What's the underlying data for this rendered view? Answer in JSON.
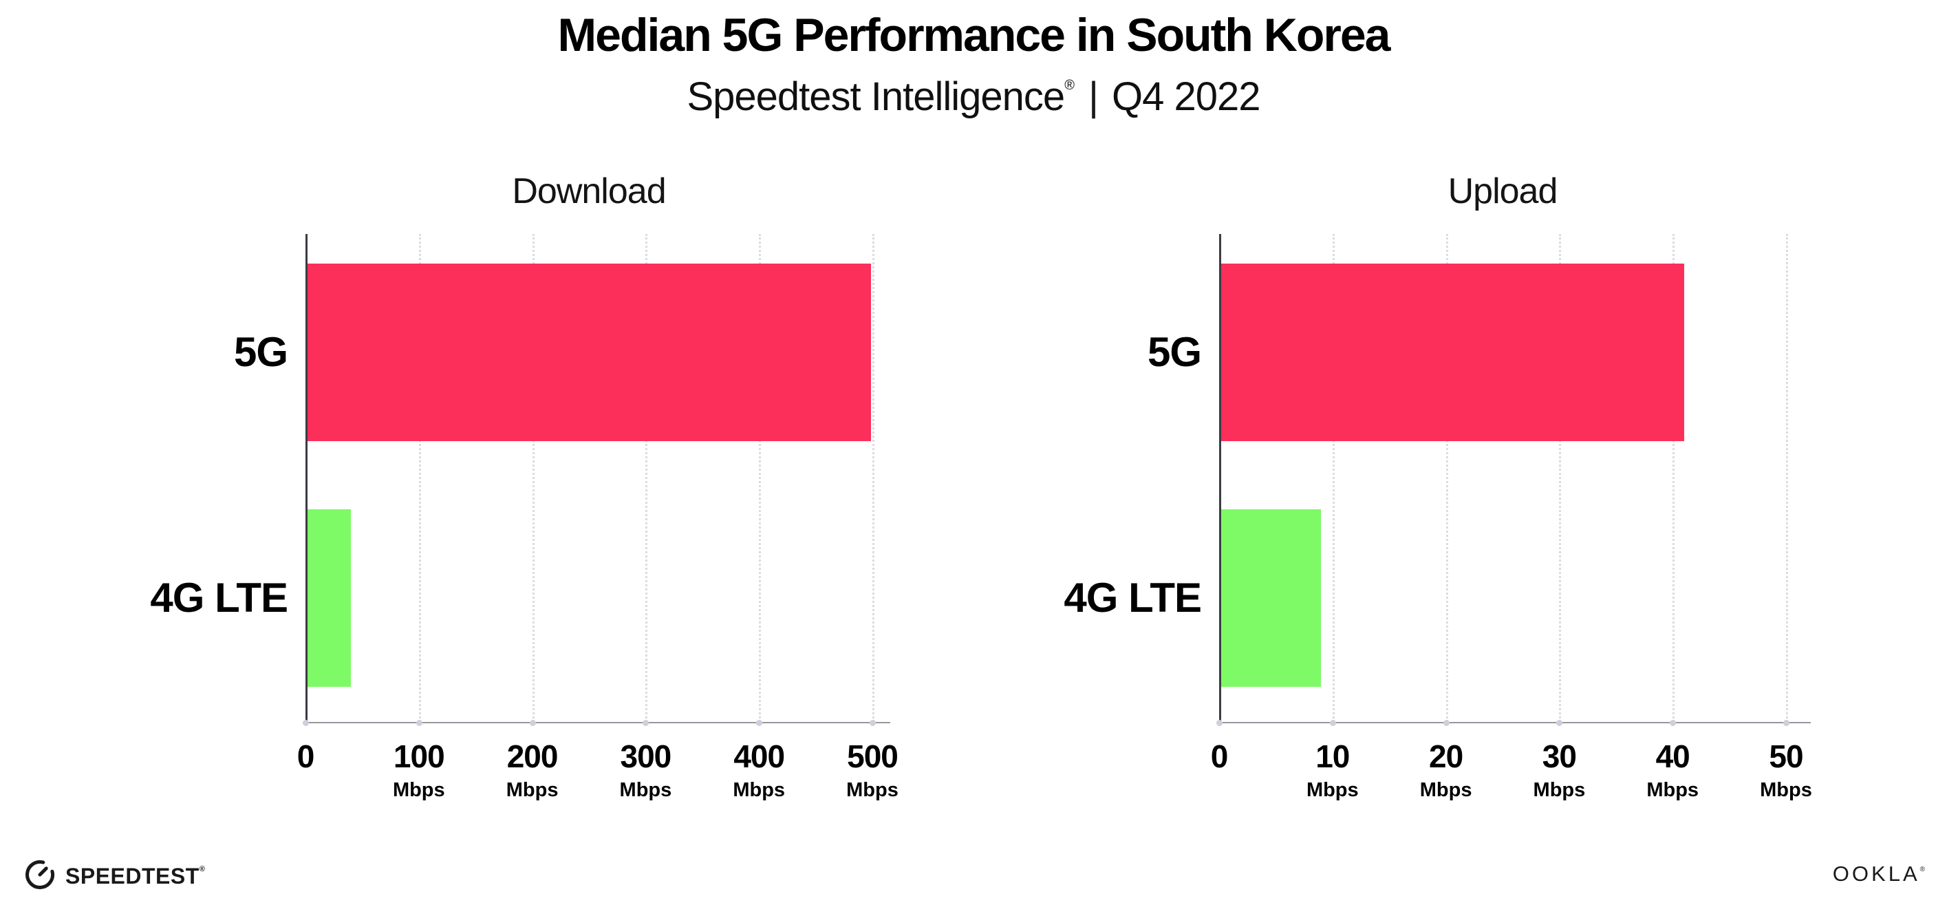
{
  "header": {
    "title": "Median 5G Performance in South Korea",
    "subtitle_brand": "Speedtest Intelligence",
    "registered_mark": "®",
    "subtitle_separator": "|",
    "subtitle_period": "Q4 2022"
  },
  "chart_data": [
    {
      "type": "bar",
      "orientation": "horizontal",
      "title": "Download",
      "categories": [
        "5G",
        "4G LTE"
      ],
      "values": [
        499,
        40
      ],
      "unit": "Mbps",
      "xlim": [
        0,
        500
      ],
      "ticks": [
        {
          "value": 0,
          "label": "0",
          "unit": ""
        },
        {
          "value": 100,
          "label": "100",
          "unit": "Mbps"
        },
        {
          "value": 200,
          "label": "200",
          "unit": "Mbps"
        },
        {
          "value": 300,
          "label": "300",
          "unit": "Mbps"
        },
        {
          "value": 400,
          "label": "400",
          "unit": "Mbps"
        },
        {
          "value": 500,
          "label": "500",
          "unit": "Mbps"
        }
      ],
      "bar_colors": [
        "#FC2E5A",
        "#7EFA66"
      ],
      "grid": true,
      "legend": false
    },
    {
      "type": "bar",
      "orientation": "horizontal",
      "title": "Upload",
      "categories": [
        "5G",
        "4G LTE"
      ],
      "values": [
        41,
        9
      ],
      "unit": "Mbps",
      "xlim": [
        0,
        50
      ],
      "ticks": [
        {
          "value": 0,
          "label": "0",
          "unit": ""
        },
        {
          "value": 10,
          "label": "10",
          "unit": "Mbps"
        },
        {
          "value": 20,
          "label": "20",
          "unit": "Mbps"
        },
        {
          "value": 30,
          "label": "30",
          "unit": "Mbps"
        },
        {
          "value": 40,
          "label": "40",
          "unit": "Mbps"
        },
        {
          "value": 50,
          "label": "50",
          "unit": "Mbps"
        }
      ],
      "bar_colors": [
        "#FC2E5A",
        "#7EFA66"
      ],
      "grid": true,
      "legend": false
    }
  ],
  "footer": {
    "speedtest_wordmark": "SPEEDTEST",
    "speedtest_registered": "®",
    "ookla_wordmark": "OOKLA",
    "ookla_registered": "®"
  },
  "colors": {
    "bar_5g": "#FC2E5A",
    "bar_4g_lte": "#7EFA66",
    "gridline": "#DADBE4",
    "x_axis": "#97979F",
    "y_axis": "#3B3B42",
    "tick_dot": "#CDD0DB",
    "text": "#000000",
    "background": "#FFFFFF"
  }
}
